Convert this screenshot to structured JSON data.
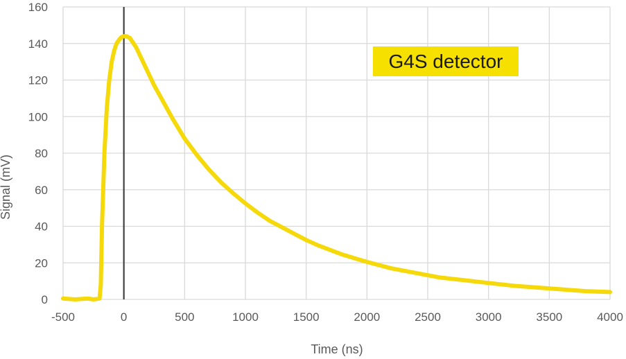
{
  "chart_data": {
    "type": "line",
    "xlabel": "Time  (ns)",
    "ylabel": "Signal  (mV)",
    "xlim": [
      -500,
      4000
    ],
    "ylim": [
      0,
      160
    ],
    "x_ticks": [
      -500,
      0,
      500,
      1000,
      1500,
      2000,
      2500,
      3000,
      3500,
      4000
    ],
    "y_ticks": [
      0,
      20,
      40,
      60,
      80,
      100,
      120,
      140,
      160
    ],
    "grid": true,
    "reference_line_x": 0,
    "annotation": {
      "text": "G4S detector",
      "background": "#f5e000",
      "position": "upper-right"
    },
    "series": [
      {
        "color": "#f5d90a",
        "x": [
          -500,
          -400,
          -300,
          -250,
          -200,
          -190,
          -180,
          -160,
          -140,
          -120,
          -100,
          -80,
          -60,
          -40,
          -20,
          0,
          20,
          50,
          100,
          150,
          200,
          250,
          300,
          400,
          500,
          600,
          700,
          800,
          900,
          1000,
          1100,
          1200,
          1300,
          1400,
          1500,
          1600,
          1700,
          1800,
          1900,
          2000,
          2200,
          2400,
          2600,
          2800,
          3000,
          3200,
          3400,
          3600,
          3800,
          4000
        ],
        "y": [
          0.5,
          0,
          0.5,
          0,
          0.5,
          8,
          40,
          80,
          105,
          120,
          130,
          136,
          140,
          142,
          143.5,
          144,
          144,
          143,
          138,
          131,
          124,
          117,
          111,
          99,
          88,
          79,
          71,
          64,
          58,
          52.5,
          47.5,
          43,
          39.5,
          36,
          32.5,
          29.5,
          27,
          24.5,
          22.5,
          20.5,
          17,
          14.5,
          12,
          10.5,
          9,
          7.5,
          6.5,
          5.5,
          4.5,
          4
        ]
      }
    ]
  }
}
